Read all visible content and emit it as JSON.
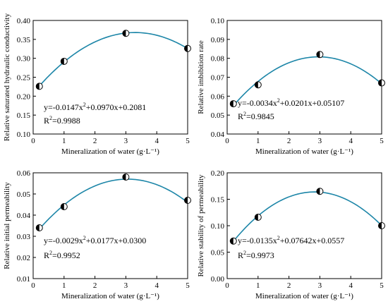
{
  "colors": {
    "curve": "#1d86a8",
    "marker_face": "#ffffff",
    "marker_fill": "#000000",
    "axis": "#000000"
  },
  "chart_data": [
    {
      "type": "scatter",
      "title": "",
      "xlabel": "Mineralization of water (g·L⁻¹)",
      "ylabel": "Relative saturated hydraulic conductivity",
      "xlim": [
        0,
        5
      ],
      "ylim": [
        0.1,
        0.4
      ],
      "xticks": [
        0,
        1,
        2,
        3,
        4,
        5
      ],
      "yticks": [
        "0.10",
        "0.15",
        "0.20",
        "0.25",
        "0.30",
        "0.35",
        "0.40"
      ],
      "x": [
        0.2,
        1,
        3,
        5
      ],
      "y": [
        0.226,
        0.292,
        0.366,
        0.326
      ],
      "fit": {
        "a": -0.0147,
        "b": 0.097,
        "c": 0.2081
      },
      "equation": {
        "prefix": "y=-0.0147x",
        "sup": "2",
        "suffix": "+0.0970x+0.2081",
        "r2_prefix": "R",
        "r2_sup": "2",
        "r2_suffix": "=0.9988"
      }
    },
    {
      "type": "scatter",
      "title": "",
      "xlabel": "Mineralization of water (g·L⁻¹)",
      "ylabel": "Relative imbibition rate",
      "xlim": [
        0,
        5
      ],
      "ylim": [
        0.04,
        0.1
      ],
      "xticks": [
        0,
        1,
        2,
        3,
        4,
        5
      ],
      "yticks": [
        "0.04",
        "0.05",
        "0.06",
        "0.07",
        "0.08",
        "0.09",
        "0.10"
      ],
      "x": [
        0.2,
        1,
        3,
        5
      ],
      "y": [
        0.056,
        0.066,
        0.082,
        0.067
      ],
      "fit": {
        "a": -0.0034,
        "b": 0.0201,
        "c": 0.05107
      },
      "equation": {
        "prefix": "y=-0.0034x",
        "sup": "2",
        "suffix": "+0.0201x+0.05107",
        "r2_prefix": "R",
        "r2_sup": "2",
        "r2_suffix": "=0.9845"
      }
    },
    {
      "type": "scatter",
      "title": "",
      "xlabel": "Mineralization of water (g·L⁻¹)",
      "ylabel": "Relative initial permeability",
      "xlim": [
        0,
        5
      ],
      "ylim": [
        0.01,
        0.06
      ],
      "xticks": [
        0,
        1,
        2,
        3,
        4,
        5
      ],
      "yticks": [
        "0.01",
        "0.02",
        "0.03",
        "0.04",
        "0.05",
        "0.06"
      ],
      "x": [
        0.2,
        1,
        3,
        5
      ],
      "y": [
        0.034,
        0.044,
        0.058,
        0.047
      ],
      "fit": {
        "a": -0.0029,
        "b": 0.0177,
        "c": 0.03
      },
      "equation": {
        "prefix": "y=-0.0029x",
        "sup": "2",
        "suffix": "+0.0177x+0.0300",
        "r2_prefix": "R",
        "r2_sup": "2",
        "r2_suffix": "=0.9952"
      }
    },
    {
      "type": "scatter",
      "title": "",
      "xlabel": "Mineralization of water (g·L⁻¹)",
      "ylabel": "Relative stability of permeability",
      "xlim": [
        0,
        5
      ],
      "ylim": [
        0.0,
        0.2
      ],
      "xticks": [
        0,
        1,
        2,
        3,
        4,
        5
      ],
      "yticks": [
        "0.00",
        "0.05",
        "0.10",
        "0.15",
        "0.20"
      ],
      "x": [
        0.2,
        1,
        3,
        5
      ],
      "y": [
        0.071,
        0.116,
        0.165,
        0.1
      ],
      "fit": {
        "a": -0.0135,
        "b": 0.07642,
        "c": 0.0557
      },
      "equation": {
        "prefix": "y=-0.0135x",
        "sup": "2",
        "suffix": "+0.07642x+0.0557",
        "r2_prefix": "R",
        "r2_sup": "2",
        "r2_suffix": "=0.9973"
      }
    }
  ]
}
